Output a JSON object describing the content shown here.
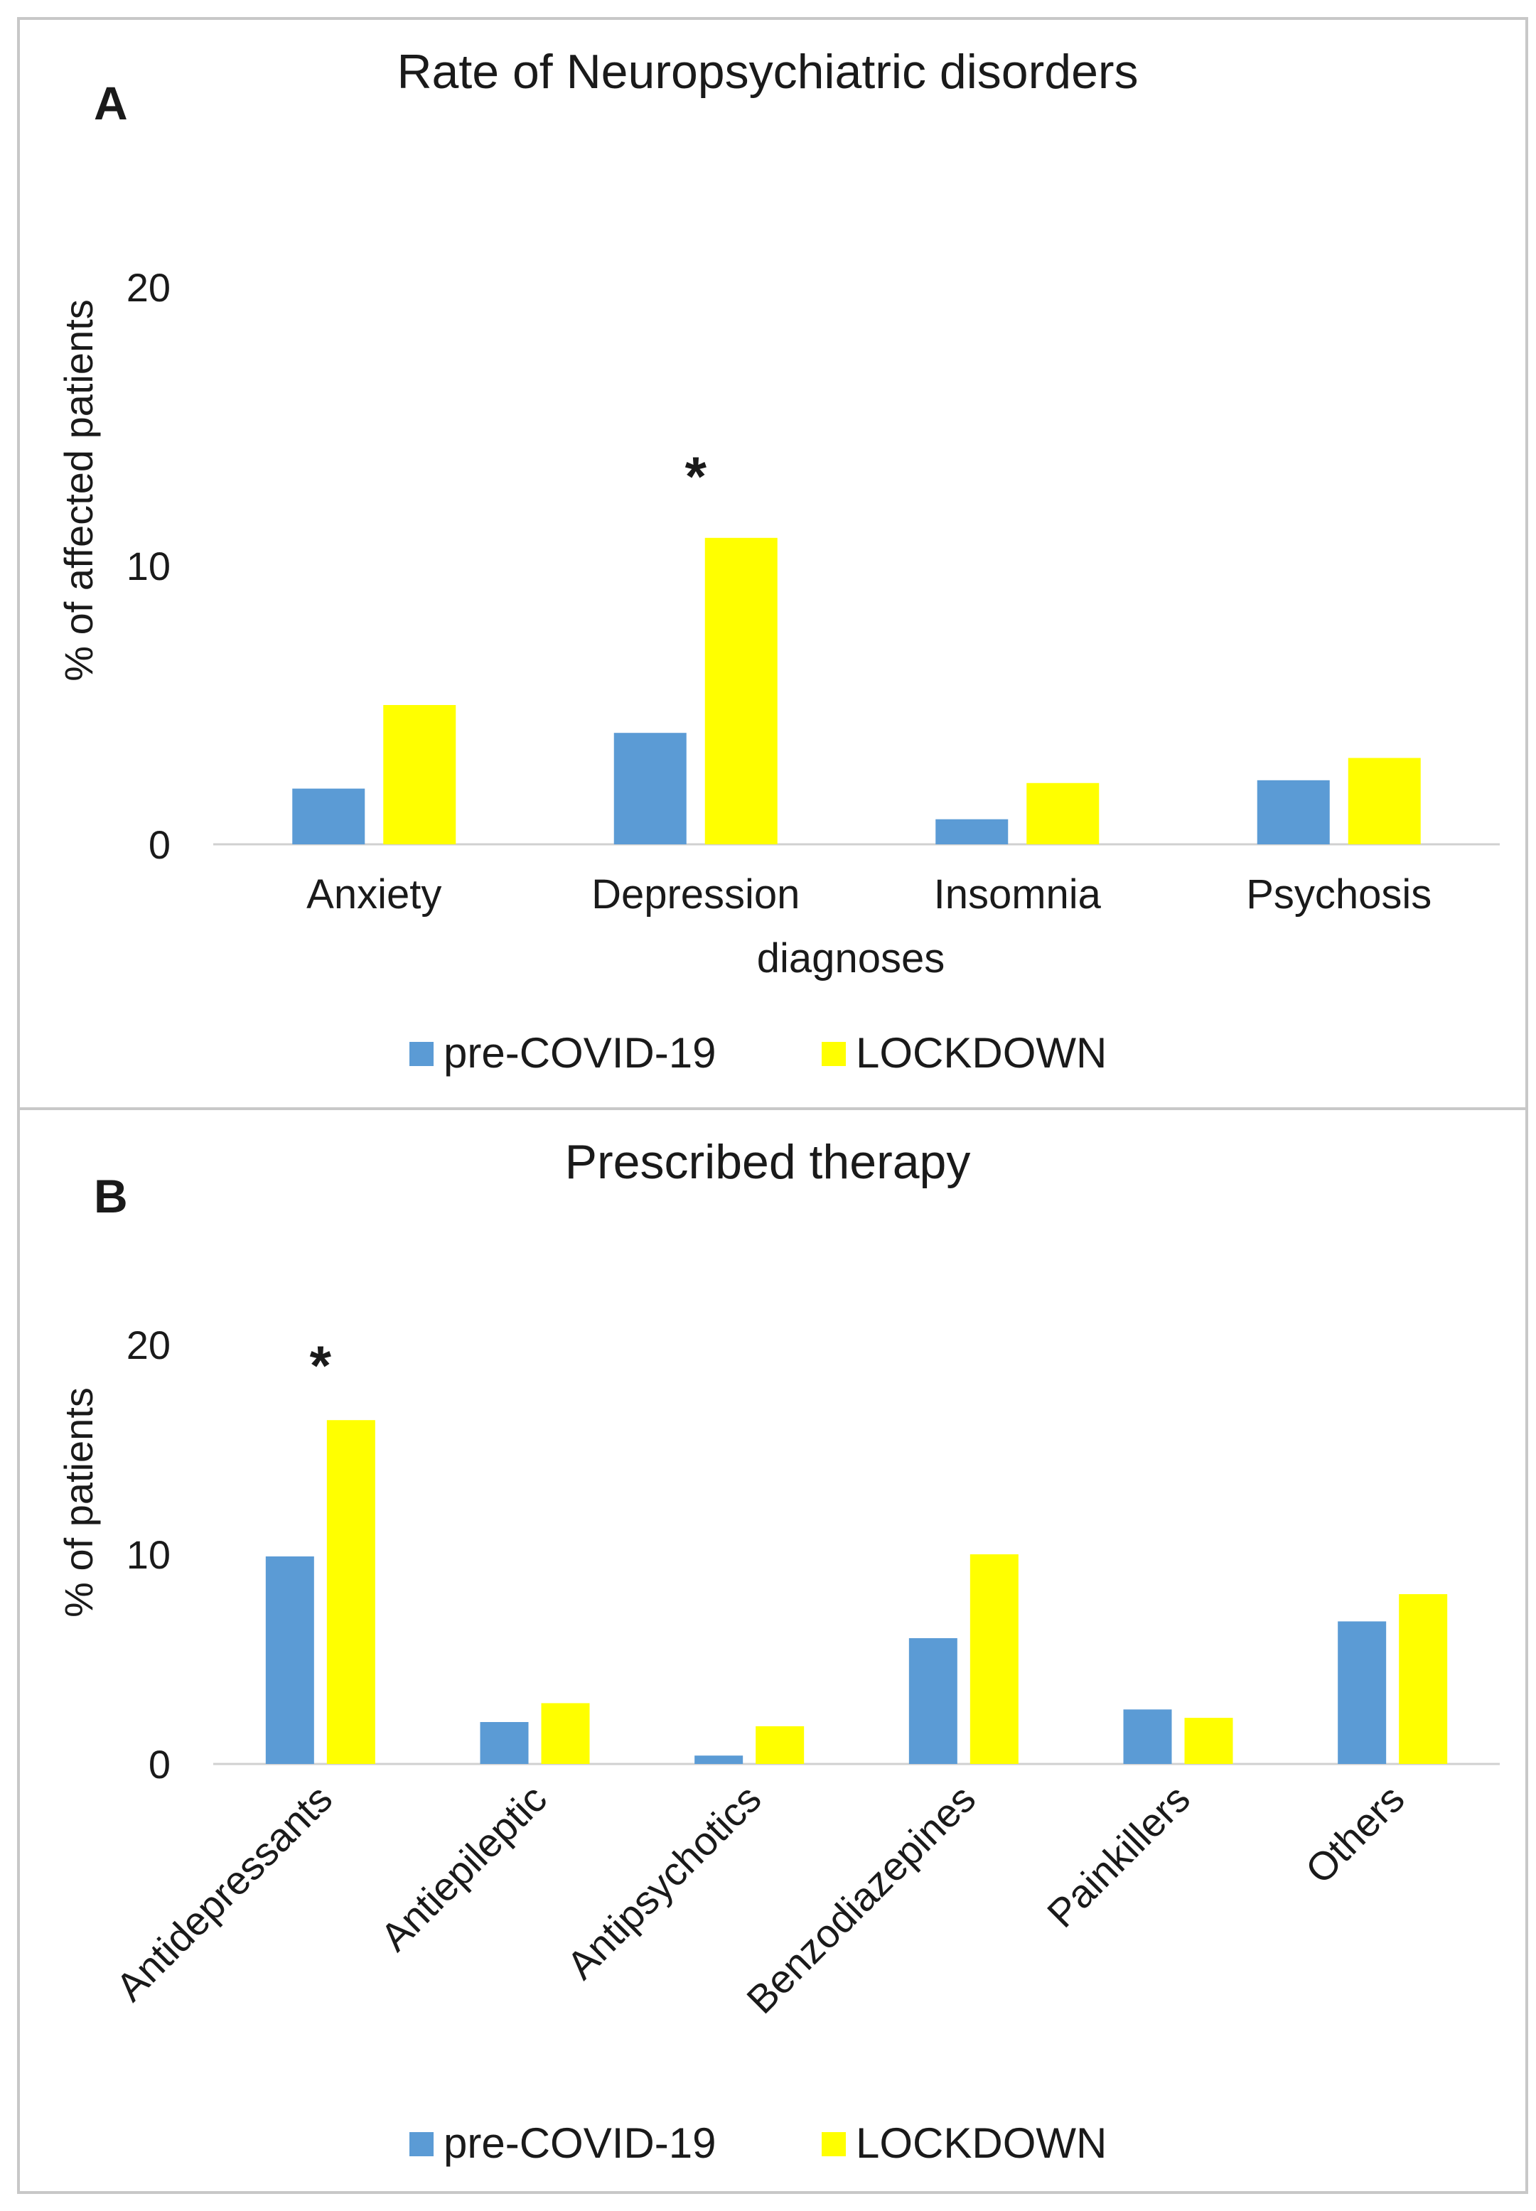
{
  "colors": {
    "pre": "#5b9bd5",
    "lockdown": "#ffff00",
    "axis": "#d0d0d0",
    "border": "#c8c8c8"
  },
  "chart_data": [
    {
      "type": "bar",
      "panel_label": "A",
      "title": "Rate of Neuropsychiatric disorders",
      "xlabel": "diagnoses",
      "ylabel": "% of affected patients",
      "ylim": [
        0,
        20
      ],
      "yticks": [
        "0",
        "10",
        "20"
      ],
      "categories": [
        "Anxiety",
        "Depression",
        "Insomnia",
        "Psychosis"
      ],
      "series": [
        {
          "name": "pre-COVID-19",
          "values": [
            2.0,
            4.0,
            0.9,
            2.3
          ]
        },
        {
          "name": "LOCKDOWN",
          "values": [
            5.0,
            11.0,
            2.2,
            3.1
          ]
        }
      ],
      "significance": [
        {
          "category": "Depression",
          "marker": "*"
        }
      ],
      "legend": [
        "pre-COVID-19",
        "LOCKDOWN"
      ]
    },
    {
      "type": "bar",
      "panel_label": "B",
      "title": "Prescribed therapy",
      "xlabel": "",
      "ylabel": "% of patients",
      "ylim": [
        0,
        20
      ],
      "yticks": [
        "0",
        "10",
        "20"
      ],
      "categories": [
        "Antidepressants",
        "Antiepileptic",
        "Antipsychotics",
        "Benzodiazepines",
        "Painkillers",
        "Others"
      ],
      "series": [
        {
          "name": "pre-COVID-19",
          "values": [
            9.9,
            2.0,
            0.4,
            6.0,
            2.6,
            6.8
          ]
        },
        {
          "name": "LOCKDOWN",
          "values": [
            16.4,
            2.9,
            1.8,
            10.0,
            2.2,
            8.1
          ]
        }
      ],
      "significance": [
        {
          "category": "Antidepressants",
          "marker": "*"
        }
      ],
      "legend": [
        "pre-COVID-19",
        "LOCKDOWN"
      ]
    }
  ]
}
